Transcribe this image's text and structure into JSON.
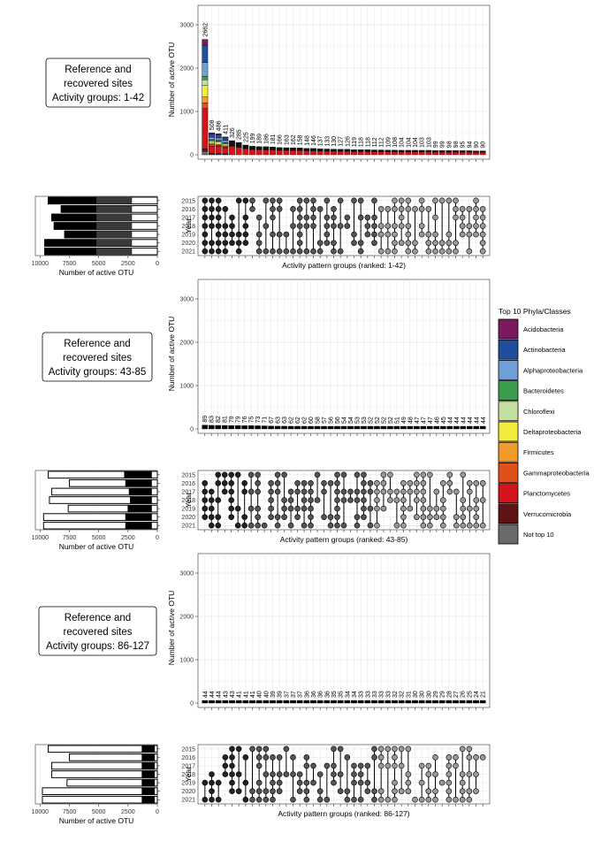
{
  "panels": [
    {
      "label_line1": "Reference and",
      "label_line2": "recovered sites",
      "label_line3": "Activity groups: 1-42",
      "bar_counts": [
        2662,
        508,
        486,
        411,
        326,
        285,
        225,
        199,
        189,
        186,
        181,
        166,
        163,
        162,
        158,
        148,
        146,
        137,
        133,
        130,
        127,
        126,
        119,
        118,
        118,
        112,
        112,
        109,
        108,
        104,
        104,
        104,
        103,
        103,
        99,
        99,
        98,
        98,
        95,
        94,
        90,
        90
      ],
      "setsize_segments": {
        "2015": {
          "total": 9300,
          "top": 2200
        },
        "2016": {
          "total": 8200,
          "top": 2200
        },
        "2017": {
          "total": 9000,
          "top": 2200
        },
        "2018": {
          "total": 8800,
          "top": 2200
        },
        "2019": {
          "total": 7900,
          "top": 2200
        },
        "2020": {
          "total": 9600,
          "top": 2200
        },
        "2021": {
          "total": 9600,
          "top": 2200
        }
      },
      "matrix_xlabel": "Activity pattern groups (ranked: 1-42)"
    },
    {
      "label_line1": "Reference and",
      "label_line2": "recovered sites",
      "label_line3": "Activity groups: 43-85",
      "bar_counts": [
        89,
        83,
        82,
        81,
        79,
        79,
        76,
        75,
        73,
        71,
        67,
        63,
        63,
        62,
        62,
        62,
        60,
        58,
        57,
        56,
        56,
        54,
        54,
        53,
        53,
        52,
        52,
        52,
        52,
        51,
        49,
        48,
        47,
        47,
        47,
        46,
        45,
        44,
        44,
        44,
        44,
        44,
        44
      ],
      "setsize_segments": {
        "2015": {
          "total": 9300,
          "top": 2000
        },
        "2016": {
          "total": 7500,
          "top": 1900
        },
        "2017": {
          "total": 9000,
          "top": 1600
        },
        "2018": {
          "total": 9200,
          "top": 1500
        },
        "2019": {
          "total": 7600,
          "top": 1700
        },
        "2020": {
          "total": 9700,
          "top": 1900
        },
        "2021": {
          "total": 9700,
          "top": 1900
        }
      },
      "matrix_xlabel": "Activity pattern groups (ranked: 43-85)"
    },
    {
      "label_line1": "Reference and",
      "label_line2": "recovered sites",
      "label_line3": "Activity groups: 86-127",
      "bar_counts": [
        44,
        44,
        44,
        43,
        43,
        41,
        41,
        41,
        40,
        40,
        39,
        39,
        37,
        37,
        37,
        36,
        36,
        36,
        36,
        35,
        35,
        34,
        34,
        33,
        33,
        33,
        33,
        33,
        32,
        32,
        31,
        30,
        30,
        30,
        29,
        29,
        28,
        27,
        26,
        25,
        24,
        21
      ],
      "setsize_segments": {
        "2015": {
          "total": 9300,
          "top": 900
        },
        "2016": {
          "total": 7500,
          "top": 900
        },
        "2017": {
          "total": 9000,
          "top": 900
        },
        "2018": {
          "total": 9000,
          "top": 900
        },
        "2019": {
          "total": 7700,
          "top": 900
        },
        "2020": {
          "total": 9800,
          "top": 900
        },
        "2021": {
          "total": 9800,
          "top": 900
        }
      },
      "matrix_xlabel": "Activity pattern groups (ranked: 86-127)"
    }
  ],
  "chart_data": [
    {
      "type": "bar",
      "ylabel": "Number of active OTU",
      "ylim": [
        0,
        3400
      ],
      "yticks": [
        0,
        1000,
        2000,
        3000
      ],
      "groups": "1-42",
      "values": [
        2662,
        508,
        486,
        411,
        326,
        285,
        225,
        199,
        189,
        186,
        181,
        166,
        163,
        162,
        158,
        148,
        146,
        137,
        133,
        130,
        127,
        126,
        119,
        118,
        118,
        112,
        112,
        109,
        108,
        104,
        104,
        104,
        103,
        103,
        99,
        99,
        98,
        98,
        95,
        94,
        90,
        90
      ]
    },
    {
      "type": "bar",
      "ylabel": "Number of active OTU",
      "ylim": [
        0,
        3400
      ],
      "yticks": [
        0,
        1000,
        2000,
        3000
      ],
      "groups": "43-85",
      "values": [
        89,
        83,
        82,
        81,
        79,
        79,
        76,
        75,
        73,
        71,
        67,
        63,
        63,
        62,
        62,
        62,
        60,
        58,
        57,
        56,
        56,
        54,
        54,
        53,
        53,
        52,
        52,
        52,
        52,
        51,
        49,
        48,
        47,
        47,
        47,
        46,
        45,
        44,
        44,
        44,
        44,
        44,
        44
      ]
    },
    {
      "type": "bar",
      "ylabel": "Number of active OTU",
      "ylim": [
        0,
        3400
      ],
      "yticks": [
        0,
        1000,
        2000,
        3000
      ],
      "groups": "86-127",
      "values": [
        44,
        44,
        44,
        43,
        43,
        41,
        41,
        41,
        40,
        40,
        39,
        39,
        37,
        37,
        37,
        36,
        36,
        36,
        36,
        35,
        35,
        34,
        34,
        33,
        33,
        33,
        33,
        33,
        32,
        32,
        31,
        30,
        30,
        30,
        29,
        29,
        28,
        27,
        26,
        25,
        24,
        21
      ]
    }
  ],
  "matrix": {
    "years": [
      "2015",
      "2016",
      "2017",
      "2018",
      "2019",
      "2020",
      "2021"
    ],
    "ylabel": "Year"
  },
  "setsize": {
    "xlabel": "Number of active OTU",
    "xticks": [
      10000,
      7500,
      5000,
      2500,
      0
    ],
    "xtick_labels": [
      "10000",
      "7500",
      "5000",
      "2500",
      "0"
    ]
  },
  "legend": {
    "title": "Top 10 Phyla/Classes",
    "items": [
      {
        "name": "Acidobacteria",
        "color": "#7b1a5e"
      },
      {
        "name": "Actinobacteria",
        "color": "#1f4e9c"
      },
      {
        "name": "Alphaproteobacteria",
        "color": "#6f9fd6"
      },
      {
        "name": "Bacteroidetes",
        "color": "#3d9b4c"
      },
      {
        "name": "Chloroflexi",
        "color": "#c4dfa0"
      },
      {
        "name": "Deltaproteobacteria",
        "color": "#f2ec3d"
      },
      {
        "name": "Firmicutes",
        "color": "#f09b2c"
      },
      {
        "name": "Gammaproteobacteria",
        "color": "#e0501a"
      },
      {
        "name": "Planctomycetes",
        "color": "#d4141b"
      },
      {
        "name": "Verrucomicrobia",
        "color": "#5e1414"
      },
      {
        "name": "Not top 10",
        "color": "#6a6a6a"
      }
    ]
  }
}
